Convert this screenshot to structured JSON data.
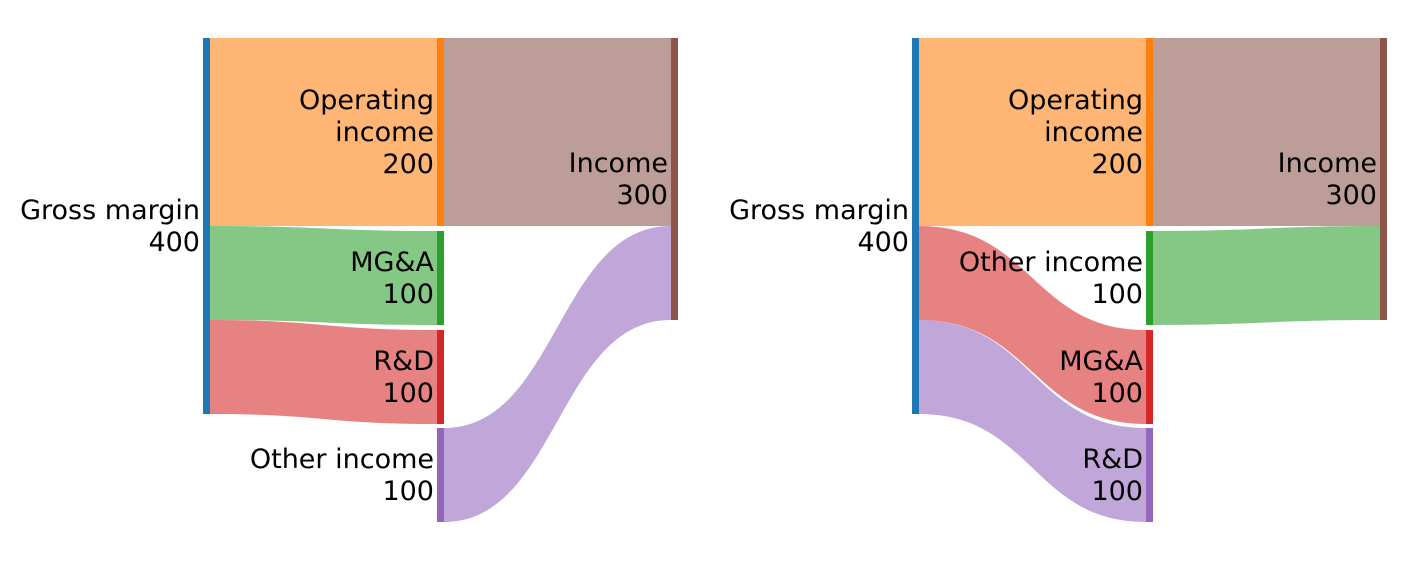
{
  "chart_data": [
    {
      "type": "sankey",
      "nodes": [
        {
          "id": "gm",
          "name": "Gross margin",
          "value": 400,
          "color": "#1f77b4"
        },
        {
          "id": "op",
          "name": "Operating income",
          "label_lines": [
            "Operating",
            "income"
          ],
          "value": 200,
          "color": "#ff7f0e"
        },
        {
          "id": "mga",
          "name": "MG&A",
          "value": 100,
          "color": "#2ca02c"
        },
        {
          "id": "rd",
          "name": "R&D",
          "value": 100,
          "color": "#d62728"
        },
        {
          "id": "oi",
          "name": "Other income",
          "value": 100,
          "color": "#9467bd"
        },
        {
          "id": "inc",
          "name": "Income",
          "value": 300,
          "color": "#8c564b"
        }
      ],
      "flows": [
        {
          "from": "gm",
          "to": "op",
          "value": 200,
          "color": "#ff7f0e"
        },
        {
          "from": "gm",
          "to": "mga",
          "value": 100,
          "color": "#2ca02c"
        },
        {
          "from": "gm",
          "to": "rd",
          "value": 100,
          "color": "#d62728"
        },
        {
          "from": "op",
          "to": "inc",
          "value": 200,
          "color": "#8c564b"
        },
        {
          "from": "oi",
          "to": "inc",
          "value": 100,
          "color": "#9467bd"
        }
      ]
    },
    {
      "type": "sankey",
      "nodes": [
        {
          "id": "gm",
          "name": "Gross margin",
          "value": 400,
          "color": "#1f77b4"
        },
        {
          "id": "op",
          "name": "Operating income",
          "label_lines": [
            "Operating",
            "income"
          ],
          "value": 200,
          "color": "#ff7f0e"
        },
        {
          "id": "oi",
          "name": "Other income",
          "value": 100,
          "color": "#2ca02c"
        },
        {
          "id": "mga",
          "name": "MG&A",
          "value": 100,
          "color": "#d62728"
        },
        {
          "id": "rd",
          "name": "R&D",
          "value": 100,
          "color": "#9467bd"
        },
        {
          "id": "inc",
          "name": "Income",
          "value": 300,
          "color": "#8c564b"
        }
      ],
      "flows": [
        {
          "from": "gm",
          "to": "op",
          "value": 200,
          "color": "#ff7f0e"
        },
        {
          "from": "gm",
          "to": "mga",
          "value": 100,
          "color": "#d62728"
        },
        {
          "from": "gm",
          "to": "rd",
          "value": 100,
          "color": "#9467bd"
        },
        {
          "from": "op",
          "to": "inc",
          "value": 200,
          "color": "#8c564b"
        },
        {
          "from": "oi",
          "to": "inc",
          "value": 100,
          "color": "#2ca02c"
        }
      ]
    }
  ]
}
